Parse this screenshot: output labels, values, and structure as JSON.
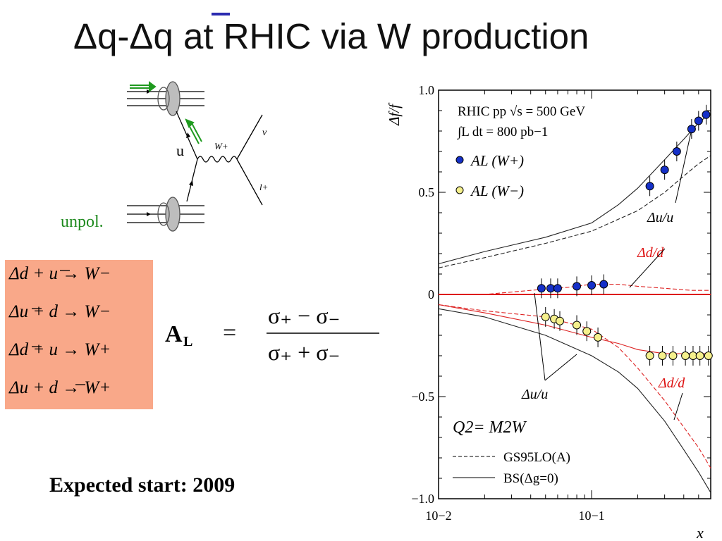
{
  "title": "Δq-Δq at RHIC via W production",
  "feynman": {
    "quark_label": "u",
    "boson_label": "W+",
    "neutrino_label": "ν",
    "lepton_label": "l+",
    "unpol_label": "unpol."
  },
  "reactions": [
    "Δd + u → W−",
    "Δu + d → W−",
    "Δd + u → W+",
    "Δu + d → W+"
  ],
  "asymmetry_formula": "AL = (σ+ − σ−)/(σ+ + σ−)",
  "expected_start": "Expected start: 2009",
  "chart_data": {
    "type": "scatter",
    "xscale": "log",
    "xlim": [
      0.01,
      0.6
    ],
    "ylim": [
      -1.0,
      1.0
    ],
    "xlabel": "x",
    "ylabel": "Δf/f",
    "yticks": [
      "1.0",
      "0.5",
      "0",
      "−0.5",
      "−1.0"
    ],
    "xticks": [
      "10−2",
      "10−1"
    ],
    "header_lines": [
      "RHIC pp √s = 500 GeV",
      "∫L dt = 800 pb−1"
    ],
    "q2_label": "Q2= M2W",
    "legend": [
      {
        "label": "AL (W+)",
        "color": "#1530c8"
      },
      {
        "label": "AL (W−)",
        "color": "#f5f08c"
      },
      {
        "label": "GS95LO(A)",
        "style": "dashed"
      },
      {
        "label": "BS(Δg=0)",
        "style": "solid"
      }
    ],
    "annotations": [
      "Δu/u",
      "Δd/d",
      "Δu/u",
      "Δd/d"
    ],
    "zero_line_color": "#dd1111",
    "series": [
      {
        "name": "AL (W+)",
        "color": "#1530c8",
        "x": [
          0.047,
          0.054,
          0.06,
          0.08,
          0.1,
          0.12,
          0.24,
          0.3,
          0.36,
          0.45,
          0.5,
          0.56
        ],
        "y": [
          0.03,
          0.03,
          0.03,
          0.04,
          0.045,
          0.05,
          0.53,
          0.61,
          0.7,
          0.81,
          0.85,
          0.88
        ]
      },
      {
        "name": "AL (W−)",
        "color": "#f5f08c",
        "x": [
          0.05,
          0.057,
          0.062,
          0.08,
          0.093,
          0.11,
          0.24,
          0.29,
          0.34,
          0.41,
          0.46,
          0.51,
          0.58
        ],
        "y": [
          -0.11,
          -0.12,
          -0.13,
          -0.15,
          -0.18,
          -0.21,
          -0.3,
          -0.3,
          -0.3,
          -0.3,
          -0.3,
          -0.3,
          -0.3
        ]
      }
    ],
    "curves": [
      {
        "name": "Δu/u BS",
        "color": "#222222",
        "dash": false,
        "x": [
          0.01,
          0.02,
          0.05,
          0.1,
          0.15,
          0.2,
          0.3,
          0.4,
          0.5,
          0.6
        ],
        "y": [
          0.15,
          0.21,
          0.28,
          0.35,
          0.44,
          0.52,
          0.66,
          0.76,
          0.84,
          0.89
        ]
      },
      {
        "name": "Δu/u GS",
        "color": "#222222",
        "dash": true,
        "x": [
          0.01,
          0.02,
          0.05,
          0.1,
          0.2,
          0.3,
          0.4,
          0.5,
          0.6
        ],
        "y": [
          0.13,
          0.18,
          0.25,
          0.31,
          0.41,
          0.5,
          0.58,
          0.64,
          0.68
        ]
      },
      {
        "name": "Δd̄/d̄ GS",
        "color": "#dd2222",
        "dash": true,
        "x": [
          0.01,
          0.02,
          0.04,
          0.07,
          0.1,
          0.15,
          0.2,
          0.3,
          0.45,
          0.6
        ],
        "y": [
          0.0,
          0.0,
          0.02,
          0.035,
          0.05,
          0.05,
          0.04,
          0.03,
          0.02,
          0.02
        ]
      },
      {
        "name": "Δd/d BS",
        "color": "#dd2222",
        "dash": false,
        "x": [
          0.01,
          0.02,
          0.05,
          0.1,
          0.15,
          0.2,
          0.3,
          0.45,
          0.6
        ],
        "y": [
          -0.05,
          -0.09,
          -0.15,
          -0.21,
          -0.24,
          -0.27,
          -0.29,
          -0.29,
          -0.29
        ]
      },
      {
        "name": "Δd/d GS",
        "color": "#dd2222",
        "dash": true,
        "x": [
          0.01,
          0.02,
          0.05,
          0.1,
          0.15,
          0.2,
          0.3,
          0.4,
          0.5,
          0.6
        ],
        "y": [
          -0.05,
          -0.08,
          -0.11,
          -0.17,
          -0.26,
          -0.36,
          -0.52,
          -0.65,
          -0.75,
          -0.85
        ]
      },
      {
        "name": "Δū/ū BS",
        "color": "#222222",
        "dash": false,
        "x": [
          0.01,
          0.02,
          0.05,
          0.1,
          0.15,
          0.2,
          0.3,
          0.4,
          0.5,
          0.6
        ],
        "y": [
          -0.07,
          -0.11,
          -0.2,
          -0.3,
          -0.38,
          -0.46,
          -0.62,
          -0.76,
          -0.87,
          -0.97
        ]
      }
    ]
  }
}
